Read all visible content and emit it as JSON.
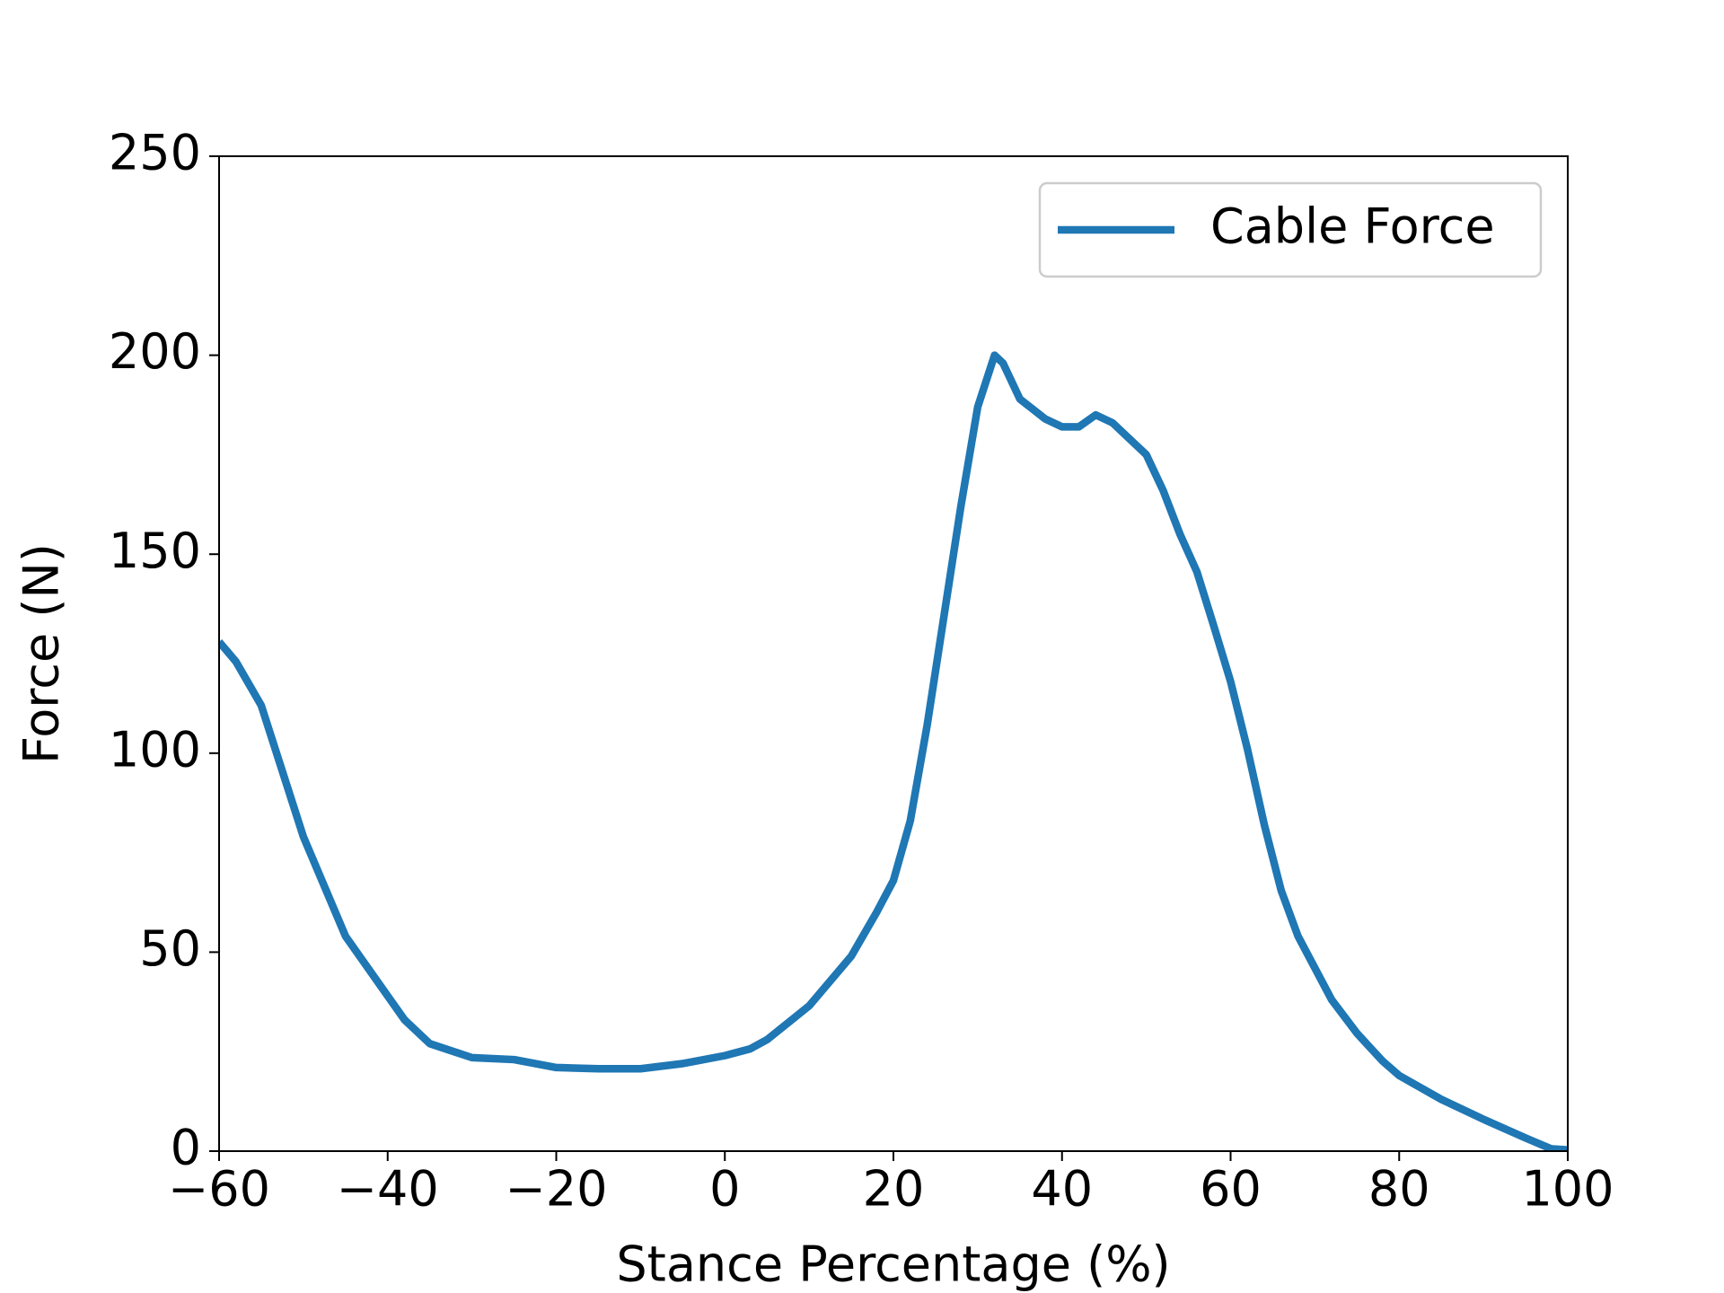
{
  "chart_data": {
    "type": "line",
    "x_label": "Stance Percentage (%)",
    "y_label": "Force (N)",
    "x": [
      -60,
      -58,
      -55,
      -50,
      -45,
      -40,
      -38,
      -35,
      -30,
      -25,
      -20,
      -15,
      -10,
      -5,
      0,
      3,
      5,
      10,
      15,
      18,
      20,
      22,
      24,
      26,
      28,
      30,
      32,
      33,
      35,
      38,
      40,
      42,
      44,
      46,
      48,
      50,
      52,
      54,
      56,
      58,
      60,
      62,
      64,
      66,
      68,
      70,
      72,
      75,
      78,
      80,
      85,
      90,
      95,
      98,
      100
    ],
    "series": [
      {
        "name": "Cable Force",
        "color": "#1f77b4",
        "values": [
          128,
          123,
          112,
          79,
          54,
          39,
          33,
          27,
          23.5,
          23,
          21,
          20.7,
          20.7,
          22,
          24,
          25.7,
          28,
          36.5,
          49,
          60,
          68,
          83,
          107,
          134.5,
          162,
          187,
          200,
          198,
          189,
          184,
          182,
          182,
          185,
          183,
          179,
          175,
          166,
          155,
          145.6,
          132,
          118,
          101,
          82,
          65.5,
          54,
          46,
          38,
          29.6,
          22.7,
          19,
          13,
          8,
          3.3,
          0.6,
          0.3
        ]
      }
    ],
    "xlim": [
      -60,
      100
    ],
    "xticks": [
      {
        "value": -60,
        "label": "−60"
      },
      {
        "value": -40,
        "label": "−40"
      },
      {
        "value": -20,
        "label": "−20"
      },
      0,
      20,
      40,
      60,
      80,
      100
    ],
    "ylim": [
      0,
      250
    ],
    "yticks": [
      0,
      50,
      100,
      150,
      200,
      250
    ],
    "legend": "upper right"
  }
}
